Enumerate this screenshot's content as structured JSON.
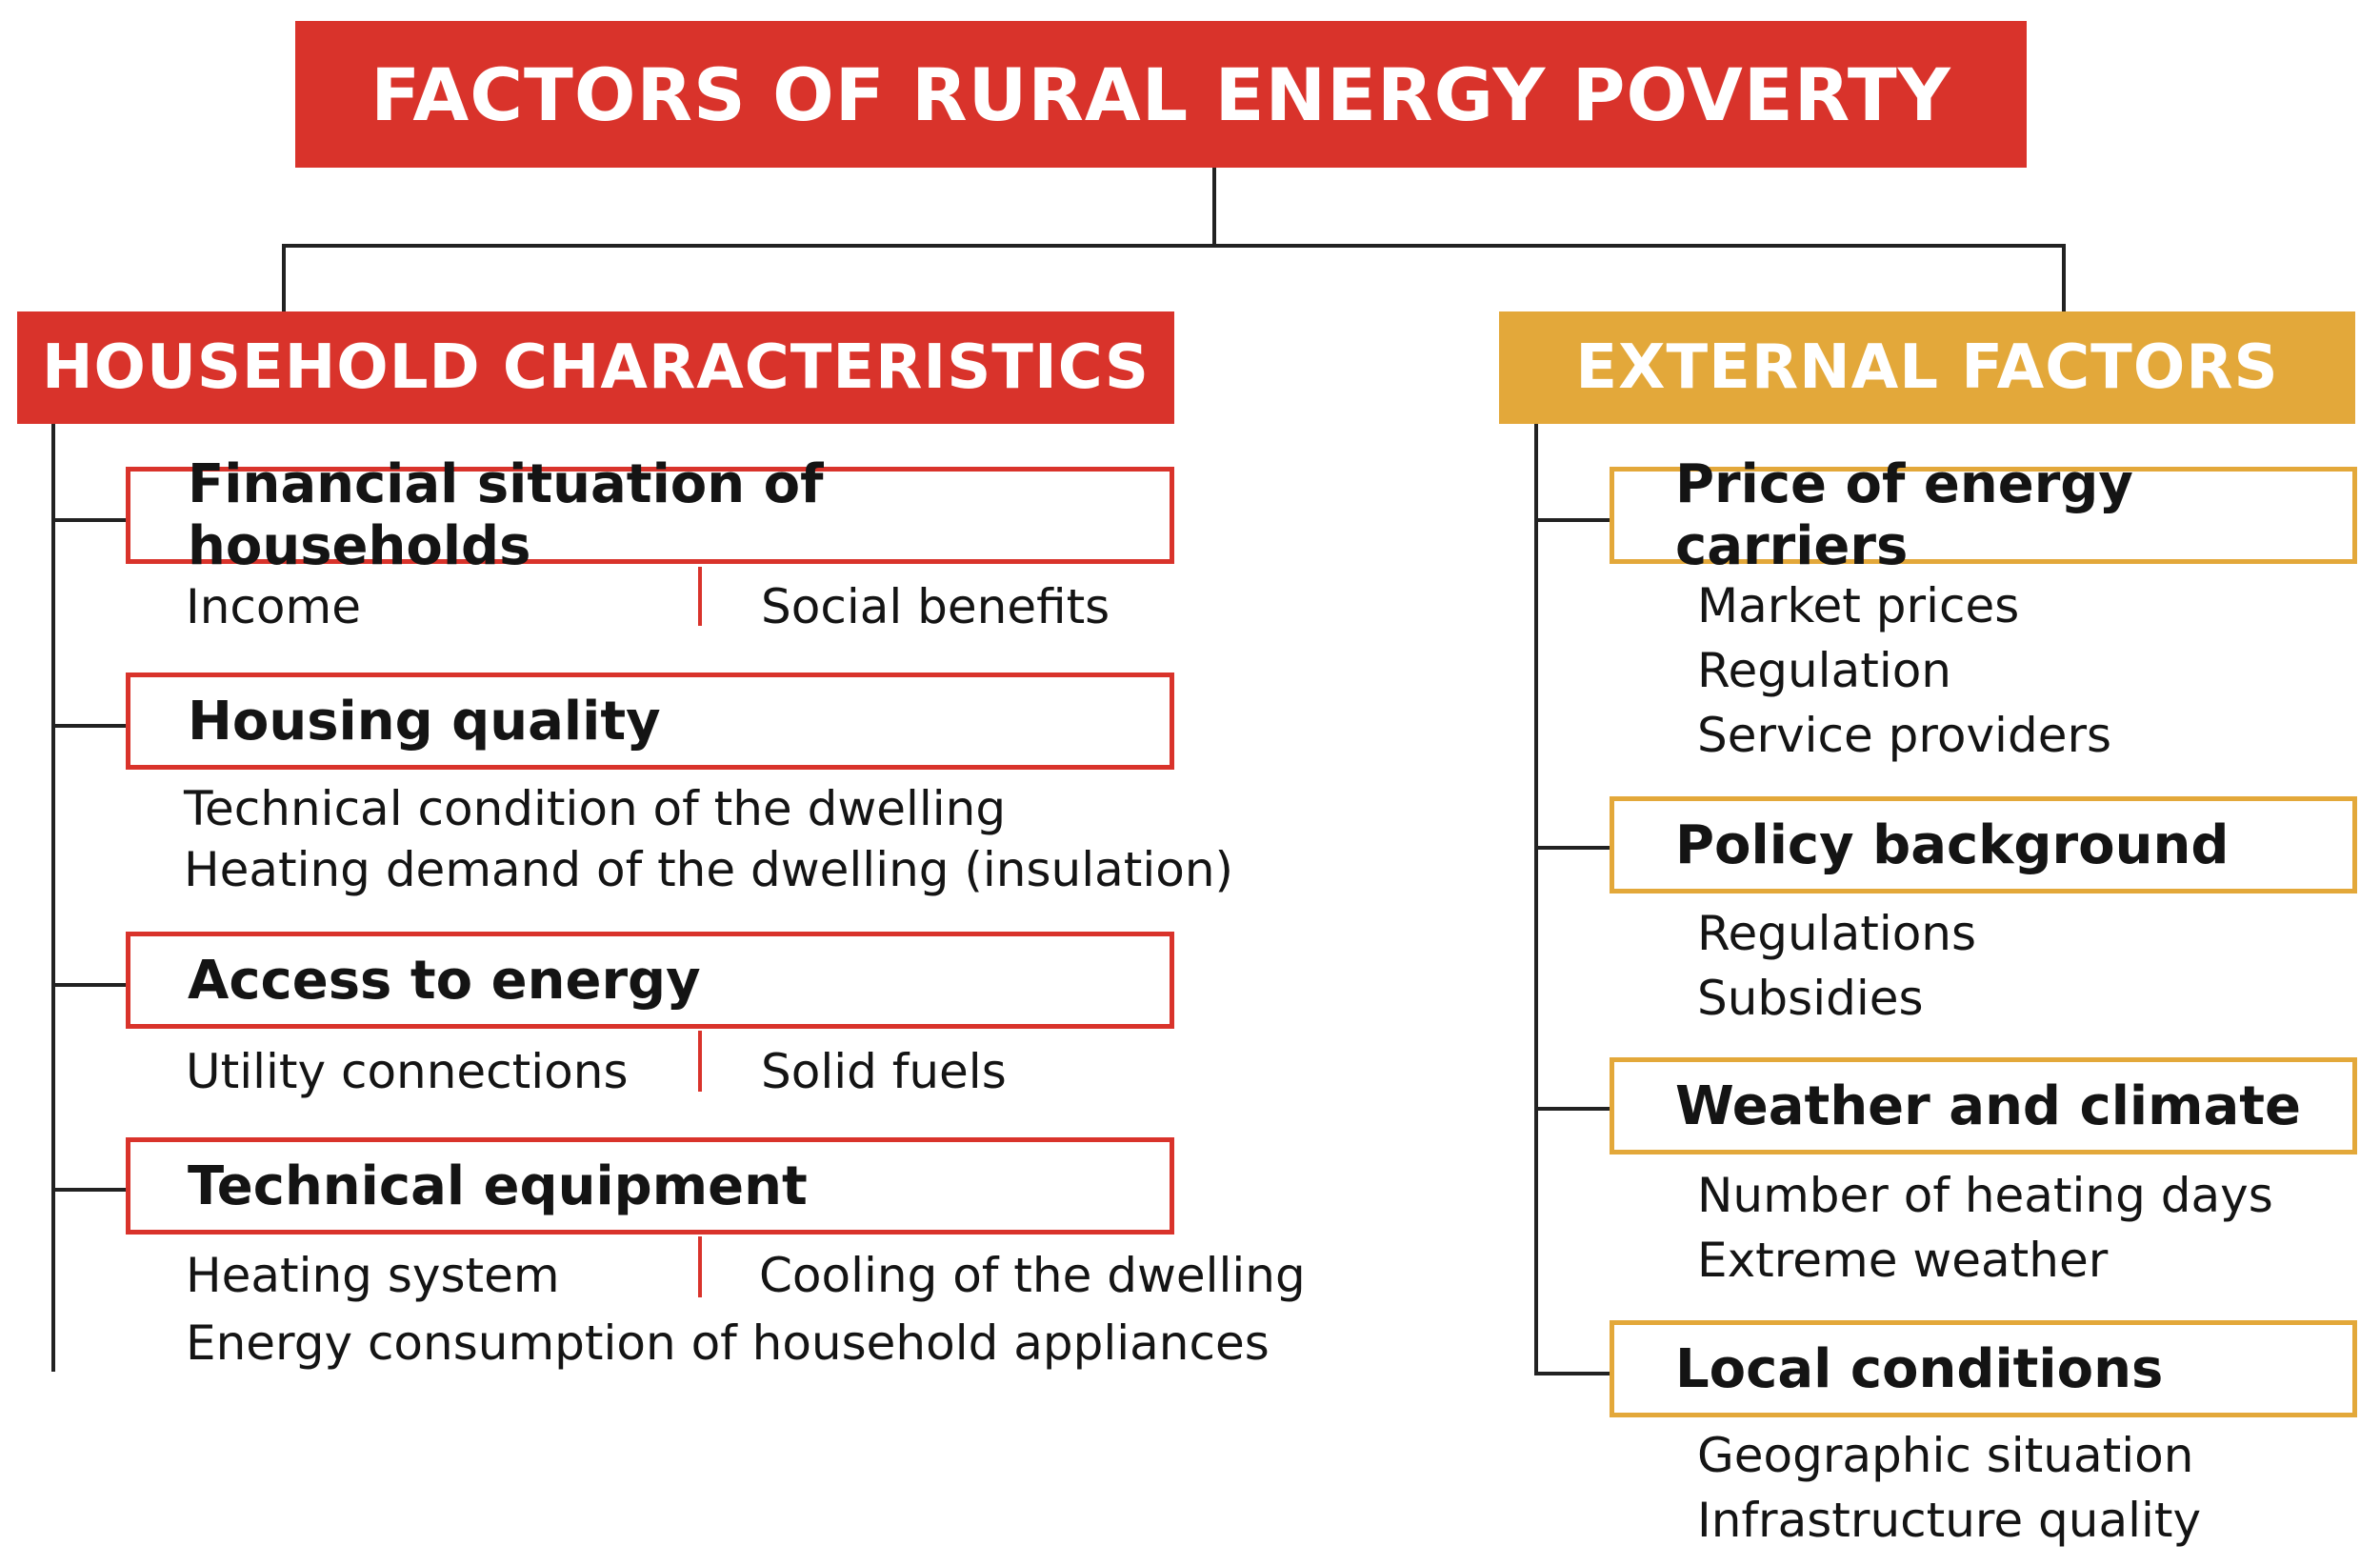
{
  "title": "FACTORS OF RURAL ENERGY POVERTY",
  "colors": {
    "red": "#d9332b",
    "gold": "#e3a83a",
    "line": "#222222"
  },
  "household": {
    "heading": "HOUSEHOLD CHARACTERISTICS",
    "groups": [
      {
        "label": "Financial situation of households",
        "items": [
          "Income",
          "Social benefits"
        ]
      },
      {
        "label": "Housing quality",
        "items": [
          "Technical condition of the dwelling",
          "Heating demand of the dwelling (insulation)"
        ]
      },
      {
        "label": "Access to energy",
        "items": [
          "Utility connections",
          "Solid fuels"
        ]
      },
      {
        "label": "Technical equipment",
        "items": [
          "Heating system",
          "Cooling of the dwelling",
          "Energy consumption of household appliances"
        ]
      }
    ]
  },
  "external": {
    "heading": "EXTERNAL FACTORS",
    "groups": [
      {
        "label": "Price of energy carriers",
        "items": [
          "Market prices",
          "Regulation",
          "Service providers"
        ]
      },
      {
        "label": "Policy background",
        "items": [
          "Regulations",
          "Subsidies"
        ]
      },
      {
        "label": "Weather and climate",
        "items": [
          "Number of heating days",
          "Extreme weather"
        ]
      },
      {
        "label": "Local conditions",
        "items": [
          "Geographic situation",
          "Infrastructure quality"
        ]
      }
    ]
  }
}
